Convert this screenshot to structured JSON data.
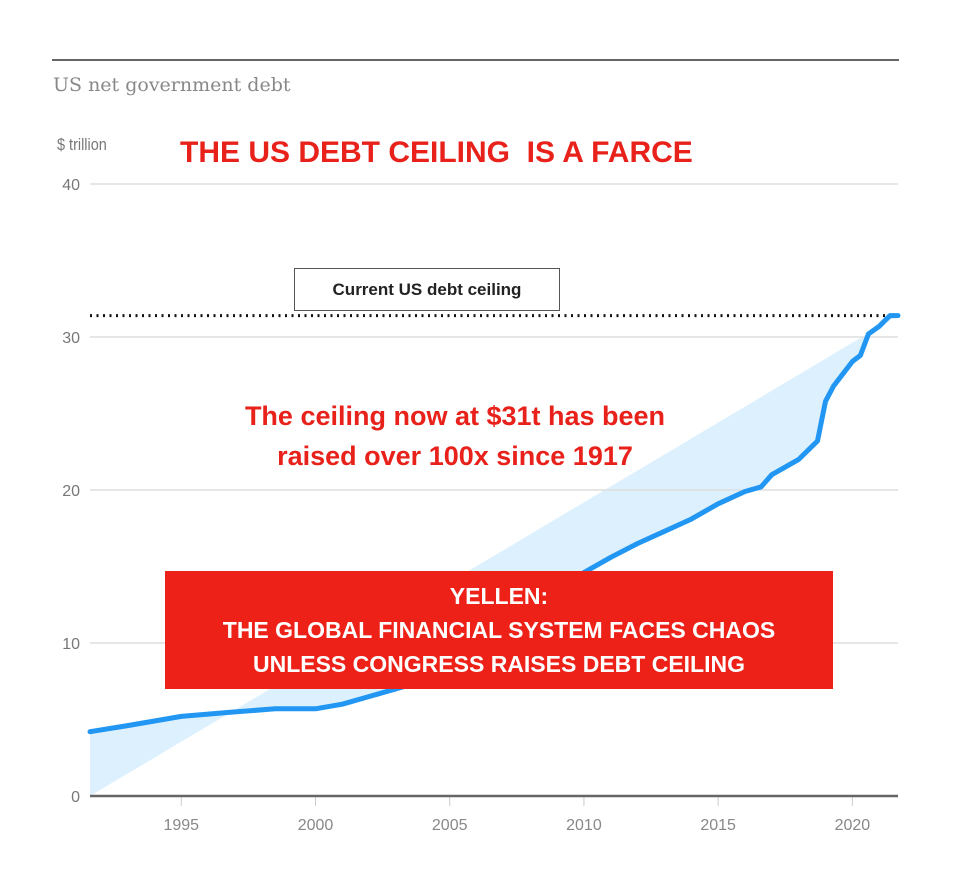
{
  "chart_data": {
    "type": "area",
    "subtitle": "US net government debt",
    "title": "THE US DEBT CEILING  IS A FARCE",
    "ylabel": "$ trillion",
    "xlim": [
      1991.6,
      2021.7
    ],
    "ylim": [
      0,
      40
    ],
    "yticks": [
      0,
      10,
      20,
      30,
      40
    ],
    "xticks": [
      1995,
      2000,
      2005,
      2010,
      2015,
      2020
    ],
    "grid": true,
    "colors": {
      "line": "#2196f3",
      "fill": "#ddf0fe",
      "annotation": "#e8211b"
    },
    "x": [
      1991.6,
      1993,
      1995,
      1997,
      1998.5,
      1999.5,
      2000,
      2001,
      2002,
      2003,
      2005,
      2007,
      2008,
      2009,
      2010,
      2011,
      2012,
      2013,
      2014,
      2015,
      2016,
      2016.6,
      2017,
      2018,
      2018.7,
      2019,
      2019.3,
      2020,
      2020.3,
      2020.6,
      2021,
      2021.4,
      2021.7
    ],
    "values": [
      4.2,
      4.6,
      5.2,
      5.5,
      5.7,
      5.7,
      5.7,
      6.0,
      6.5,
      7.0,
      8.0,
      9.0,
      10.5,
      12.5,
      14.6,
      15.6,
      16.5,
      17.3,
      18.1,
      19.1,
      19.9,
      20.2,
      21.0,
      22.0,
      23.2,
      25.8,
      26.8,
      28.4,
      28.8,
      30.2,
      30.7,
      31.4,
      31.4
    ],
    "annotations": {
      "ceiling_label": "Current US debt ceiling",
      "ceiling_value": 31.4,
      "note_lines": [
        "The ceiling now at $31t has been",
        "raised over 100x since 1917"
      ],
      "banner_lines": [
        "YELLEN:",
        "THE GLOBAL FINANCIAL SYSTEM FACES CHAOS",
        "UNLESS CONGRESS RAISES DEBT CEILING"
      ]
    }
  }
}
